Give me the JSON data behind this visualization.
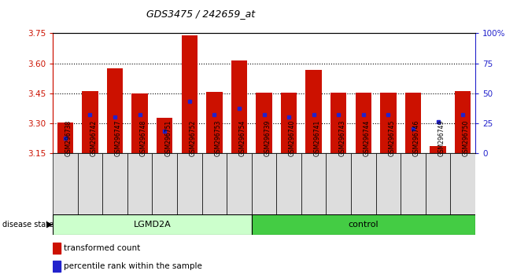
{
  "title": "GDS3475 / 242659_at",
  "samples": [
    "GSM296738",
    "GSM296742",
    "GSM296747",
    "GSM296748",
    "GSM296751",
    "GSM296752",
    "GSM296753",
    "GSM296754",
    "GSM296739",
    "GSM296740",
    "GSM296741",
    "GSM296743",
    "GSM296744",
    "GSM296745",
    "GSM296746",
    "GSM296749",
    "GSM296750"
  ],
  "groups": [
    "LGMD2A",
    "LGMD2A",
    "LGMD2A",
    "LGMD2A",
    "LGMD2A",
    "LGMD2A",
    "LGMD2A",
    "LGMD2A",
    "control",
    "control",
    "control",
    "control",
    "control",
    "control",
    "control",
    "control",
    "control"
  ],
  "red_values": [
    3.302,
    3.462,
    3.575,
    3.45,
    3.325,
    3.74,
    3.455,
    3.615,
    3.452,
    3.452,
    3.565,
    3.452,
    3.452,
    3.452,
    3.452,
    3.185,
    3.462
  ],
  "blue_pct": [
    12,
    32,
    30,
    32,
    18,
    43,
    32,
    37,
    32,
    30,
    32,
    32,
    32,
    32,
    20,
    26,
    32
  ],
  "y_min": 3.15,
  "y_max": 3.75,
  "y_ticks": [
    3.15,
    3.3,
    3.45,
    3.6,
    3.75
  ],
  "bar_color": "#CC1100",
  "blue_color": "#2222CC",
  "lgmd2a_color": "#CCFFCC",
  "control_color": "#44CC44",
  "left_label_color": "#CC1100",
  "right_label_color": "#2222CC",
  "plot_bg_color": "#FFFFFF",
  "sample_label_bg": "#DDDDDD",
  "bar_width": 0.65,
  "baseline": 3.15,
  "n_lgmd2a": 8,
  "n_control": 9
}
